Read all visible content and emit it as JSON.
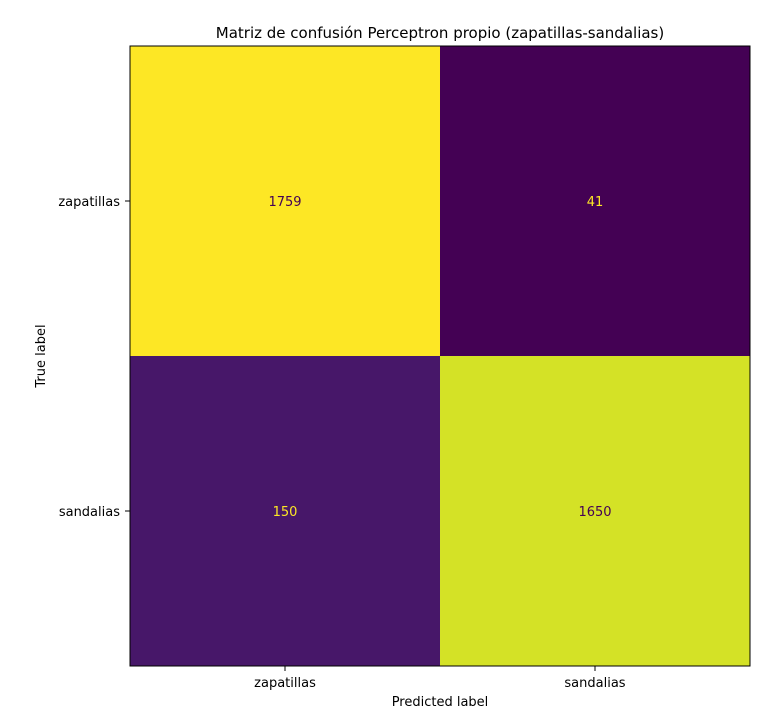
{
  "chart_data": {
    "type": "heatmap",
    "title": "Matriz de confusión Perceptron propio (zapatillas-sandalias)",
    "xlabel": "Predicted label",
    "ylabel": "True label",
    "x_categories": [
      "zapatillas",
      "sandalias"
    ],
    "y_categories": [
      "zapatillas",
      "sandalias"
    ],
    "values": [
      [
        1759,
        41
      ],
      [
        150,
        1650
      ]
    ],
    "colormap": "viridis",
    "value_range": [
      41,
      1759
    ],
    "grid": false,
    "colorbar": false
  },
  "colors": {
    "high": "#fde725",
    "low": "#440154",
    "text_on_dark": "#fde725",
    "text_on_light": "#440154"
  }
}
